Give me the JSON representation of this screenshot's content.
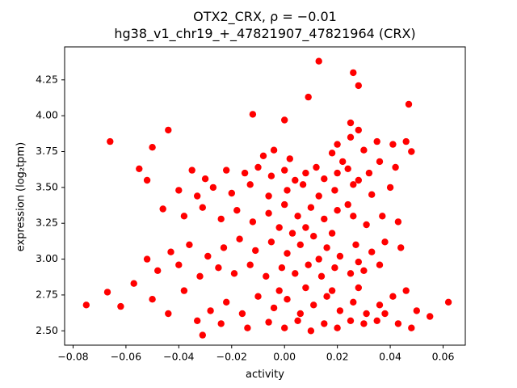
{
  "chart_data": {
    "type": "scatter",
    "title": "OTX2_CRX, ρ = −0.01",
    "subtitle": "hg38_v1_chr19_+_47821907_47821964 (CRX)",
    "xlabel": "activity",
    "ylabel": "expression (log₂tpm)",
    "marker_color": "#ff0000",
    "background_color": "#ffffff",
    "axis_color": "#000000",
    "grid": false,
    "legend": null,
    "xlim": [
      -0.0832,
      0.0684
    ],
    "ylim": [
      2.4,
      4.48
    ],
    "x_tick_values": [
      -0.08,
      -0.06,
      -0.04,
      -0.02,
      0.0,
      0.02,
      0.04,
      0.06
    ],
    "x_tick_labels": [
      "−0.08",
      "−0.06",
      "−0.04",
      "−0.02",
      "0.00",
      "0.02",
      "0.04",
      "0.06"
    ],
    "y_tick_values": [
      2.5,
      2.75,
      3.0,
      3.25,
      3.5,
      3.75,
      4.0,
      4.25
    ],
    "y_tick_labels": [
      "2.50",
      "2.75",
      "3.00",
      "3.25",
      "3.50",
      "3.75",
      "4.00",
      "4.25"
    ],
    "points": [
      [
        0.013,
        4.38
      ],
      [
        0.026,
        4.3
      ],
      [
        0.028,
        4.21
      ],
      [
        0.009,
        4.13
      ],
      [
        0.047,
        4.08
      ],
      [
        -0.012,
        4.01
      ],
      [
        0.0,
        3.97
      ],
      [
        0.025,
        3.95
      ],
      [
        -0.044,
        3.9
      ],
      [
        0.028,
        3.9
      ],
      [
        0.025,
        3.85
      ],
      [
        -0.066,
        3.82
      ],
      [
        0.035,
        3.82
      ],
      [
        0.046,
        3.82
      ],
      [
        0.041,
        3.8
      ],
      [
        -0.05,
        3.78
      ],
      [
        0.02,
        3.8
      ],
      [
        0.048,
        3.75
      ],
      [
        -0.004,
        3.76
      ],
      [
        0.03,
        3.76
      ],
      [
        0.018,
        3.74
      ],
      [
        -0.008,
        3.72
      ],
      [
        0.002,
        3.7
      ],
      [
        0.022,
        3.68
      ],
      [
        0.036,
        3.68
      ],
      [
        0.042,
        3.64
      ],
      [
        -0.055,
        3.63
      ],
      [
        -0.035,
        3.62
      ],
      [
        -0.022,
        3.62
      ],
      [
        -0.01,
        3.64
      ],
      [
        0.0,
        3.62
      ],
      [
        0.012,
        3.64
      ],
      [
        -0.015,
        3.6
      ],
      [
        0.008,
        3.6
      ],
      [
        0.02,
        3.6
      ],
      [
        0.032,
        3.6
      ],
      [
        -0.03,
        3.56
      ],
      [
        -0.005,
        3.58
      ],
      [
        0.015,
        3.56
      ],
      [
        -0.052,
        3.55
      ],
      [
        0.004,
        3.55
      ],
      [
        0.028,
        3.55
      ],
      [
        0.024,
        3.63
      ],
      [
        -0.013,
        3.52
      ],
      [
        0.007,
        3.52
      ],
      [
        0.026,
        3.52
      ],
      [
        -0.027,
        3.5
      ],
      [
        0.001,
        3.48
      ],
      [
        0.019,
        3.48
      ],
      [
        -0.04,
        3.48
      ],
      [
        0.04,
        3.5
      ],
      [
        -0.02,
        3.46
      ],
      [
        0.033,
        3.45
      ],
      [
        -0.033,
        3.44
      ],
      [
        -0.006,
        3.44
      ],
      [
        0.013,
        3.44
      ],
      [
        -0.046,
        3.35
      ],
      [
        -0.031,
        3.36
      ],
      [
        -0.018,
        3.34
      ],
      [
        -0.006,
        3.32
      ],
      [
        0.01,
        3.36
      ],
      [
        0.02,
        3.34
      ],
      [
        0.0,
        3.38
      ],
      [
        0.024,
        3.38
      ],
      [
        0.037,
        3.3
      ],
      [
        -0.038,
        3.3
      ],
      [
        0.005,
        3.3
      ],
      [
        0.026,
        3.3
      ],
      [
        -0.024,
        3.28
      ],
      [
        0.015,
        3.28
      ],
      [
        -0.012,
        3.26
      ],
      [
        0.043,
        3.26
      ],
      [
        0.031,
        3.24
      ],
      [
        -0.002,
        3.22
      ],
      [
        0.008,
        3.22
      ],
      [
        0.003,
        3.18
      ],
      [
        0.018,
        3.18
      ],
      [
        -0.017,
        3.14
      ],
      [
        0.011,
        3.16
      ],
      [
        0.038,
        3.12
      ],
      [
        -0.005,
        3.12
      ],
      [
        -0.036,
        3.1
      ],
      [
        0.006,
        3.1
      ],
      [
        0.027,
        3.1
      ],
      [
        -0.023,
        3.08
      ],
      [
        0.016,
        3.08
      ],
      [
        0.044,
        3.08
      ],
      [
        -0.011,
        3.06
      ],
      [
        -0.043,
        3.05
      ],
      [
        0.033,
        3.05
      ],
      [
        0.001,
        3.04
      ],
      [
        -0.029,
        3.02
      ],
      [
        0.021,
        3.02
      ],
      [
        -0.052,
        3.0
      ],
      [
        0.013,
        3.0
      ],
      [
        0.028,
        2.98
      ],
      [
        -0.04,
        2.96
      ],
      [
        -0.013,
        2.96
      ],
      [
        0.009,
        2.96
      ],
      [
        0.036,
        2.96
      ],
      [
        -0.025,
        2.94
      ],
      [
        -0.001,
        2.94
      ],
      [
        0.019,
        2.94
      ],
      [
        -0.048,
        2.92
      ],
      [
        0.025,
        2.9
      ],
      [
        -0.019,
        2.9
      ],
      [
        0.004,
        2.9
      ],
      [
        -0.032,
        2.88
      ],
      [
        -0.007,
        2.88
      ],
      [
        0.014,
        2.88
      ],
      [
        0.03,
        2.92
      ],
      [
        -0.057,
        2.83
      ],
      [
        0.008,
        2.8
      ],
      [
        0.028,
        2.8
      ],
      [
        -0.002,
        2.78
      ],
      [
        -0.038,
        2.78
      ],
      [
        0.018,
        2.78
      ],
      [
        0.046,
        2.78
      ],
      [
        -0.067,
        2.77
      ],
      [
        -0.01,
        2.74
      ],
      [
        0.016,
        2.74
      ],
      [
        0.041,
        2.74
      ],
      [
        -0.05,
        2.72
      ],
      [
        -0.022,
        2.7
      ],
      [
        0.001,
        2.72
      ],
      [
        0.026,
        2.7
      ],
      [
        0.062,
        2.7
      ],
      [
        -0.075,
        2.68
      ],
      [
        0.011,
        2.68
      ],
      [
        0.036,
        2.68
      ],
      [
        -0.062,
        2.67
      ],
      [
        -0.004,
        2.66
      ],
      [
        -0.028,
        2.64
      ],
      [
        0.021,
        2.64
      ],
      [
        0.05,
        2.64
      ],
      [
        -0.016,
        2.62
      ],
      [
        0.006,
        2.62
      ],
      [
        0.031,
        2.62
      ],
      [
        -0.044,
        2.62
      ],
      [
        0.038,
        2.62
      ],
      [
        0.055,
        2.6
      ],
      [
        -0.033,
        2.57
      ],
      [
        0.005,
        2.57
      ],
      [
        0.025,
        2.57
      ],
      [
        0.035,
        2.57
      ],
      [
        -0.006,
        2.56
      ],
      [
        -0.024,
        2.55
      ],
      [
        0.015,
        2.55
      ],
      [
        0.03,
        2.55
      ],
      [
        0.043,
        2.55
      ],
      [
        -0.014,
        2.52
      ],
      [
        0.0,
        2.52
      ],
      [
        0.02,
        2.52
      ],
      [
        0.048,
        2.52
      ],
      [
        0.01,
        2.5
      ],
      [
        -0.031,
        2.47
      ]
    ]
  }
}
